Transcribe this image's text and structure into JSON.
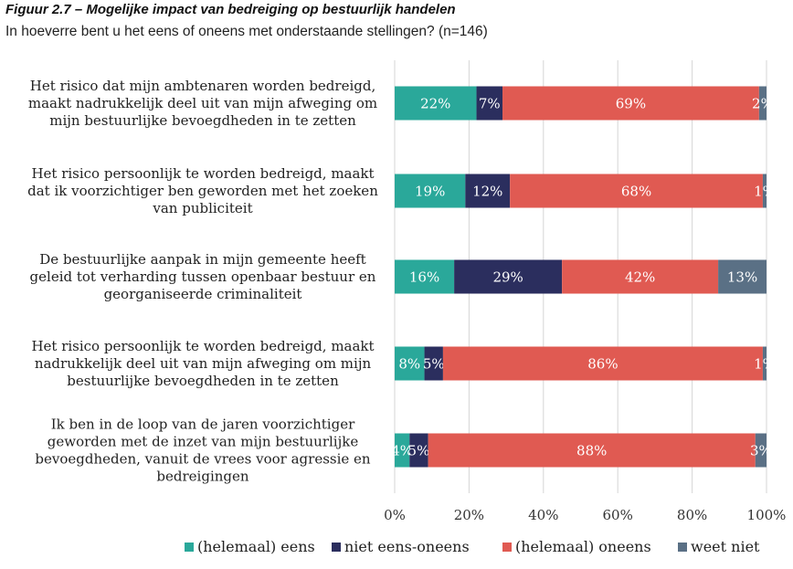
{
  "title": "Figuur 2.7 – Mogelijke impact van bedreiging op bestuurlijk handelen",
  "subtitle": "In hoeverre bent u het eens of oneens met onderstaande stellingen? (n=146)",
  "chart_data": {
    "type": "bar",
    "orientation": "horizontal",
    "stacked": true,
    "categories": [
      [
        "Het risico dat mijn ambtenaren worden bedreigd,",
        "maakt nadrukkelijk deel uit van mijn afweging om",
        "mijn bestuurlijke bevoegdheden in te zetten"
      ],
      [
        "Het risico persoonlijk te worden bedreigd, maakt",
        "dat ik voorzichtiger ben geworden met het zoeken",
        "van publiciteit"
      ],
      [
        "De bestuurlijke aanpak in mijn gemeente heeft",
        "geleid tot verharding tussen openbaar bestuur en",
        "georganiseerde criminaliteit"
      ],
      [
        "Het risico persoonlijk te worden bedreigd, maakt",
        "nadrukkelijk deel uit van mijn afweging om mijn",
        "bestuurlijke bevoegdheden in te zetten"
      ],
      [
        "Ik ben in de loop van de jaren voorzichtiger",
        "geworden met de inzet van mijn bestuurlijke",
        "bevoegdheden, vanuit de vrees voor agressie en",
        "bedreigingen"
      ]
    ],
    "series": [
      {
        "name": "(helemaal) eens",
        "color": "#2aa89a",
        "values": [
          22,
          19,
          16,
          8,
          4
        ]
      },
      {
        "name": "niet eens-oneens",
        "color": "#2b2e5e",
        "values": [
          7,
          12,
          29,
          5,
          5
        ]
      },
      {
        "name": "(helemaal) oneens",
        "color": "#e05a52",
        "values": [
          69,
          68,
          42,
          86,
          88
        ]
      },
      {
        "name": "weet niet",
        "color": "#5a7085",
        "values": [
          2,
          1,
          13,
          1,
          3
        ]
      }
    ],
    "xlim": [
      0,
      100
    ],
    "xticks": [
      0,
      20,
      40,
      60,
      80,
      100
    ],
    "tick_suffix": "%",
    "value_suffix": "%",
    "gridlines": true,
    "legend_position": "bottom"
  }
}
